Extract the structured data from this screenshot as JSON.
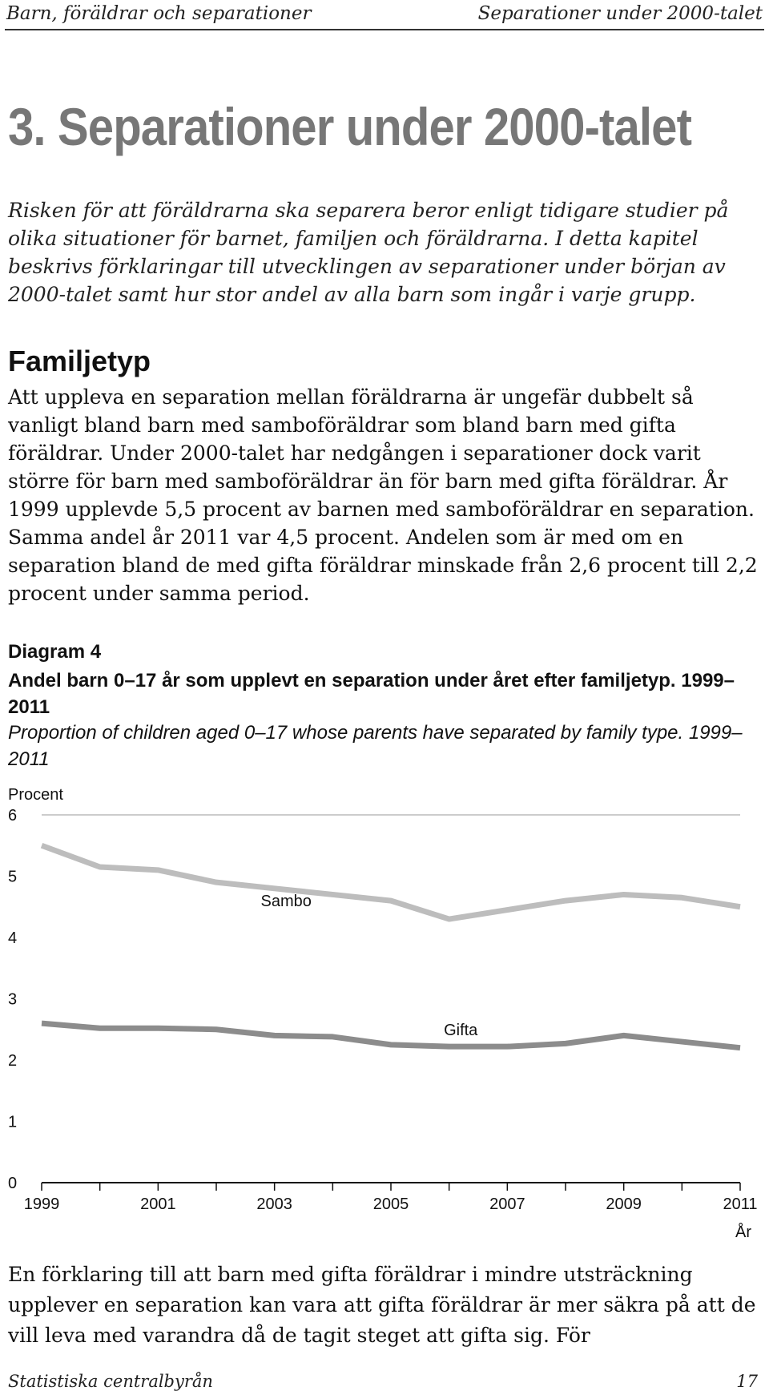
{
  "header": {
    "left": "Barn, föräldrar och separationer",
    "right": "Separationer under 2000-talet"
  },
  "chapter_title": "3. Separationer under 2000-talet",
  "intro": "Risken för att föräldrarna ska separera beror enligt tidigare studier på olika situationer för barnet, familjen och föräldrarna. I detta kapitel beskrivs förklaringar till utvecklingen av separationer under början av 2000-talet samt hur stor andel av alla barn som ingår i varje grupp.",
  "section_title": "Familjetyp",
  "body_paragraph": "Att uppleva en separation mellan föräldrarna är ungefär dubbelt så vanligt bland barn med samboföräldrar som bland barn med gifta föräldrar. Under 2000-talet har nedgången i separationer dock varit större för barn med samboföräldrar än för barn med gifta föräldrar. År 1999 upplevde 5,5 procent av barnen med samboföräldrar en separation. Samma andel år 2011 var 4,5 procent. Andelen som är med om en separation bland de med gifta föräldrar minskade från 2,6 procent till 2,2 procent under samma period.",
  "figure": {
    "label": "Diagram 4",
    "title_sv": "Andel barn 0–17 år som upplevt en separation under året efter familjetyp. 1999–2011",
    "title_en": "Proportion of children aged 0–17 whose parents have separated by family type. 1999–2011"
  },
  "chart_data": {
    "type": "line",
    "ylabel": "Procent",
    "xlabel": "År",
    "ylim": [
      0,
      6
    ],
    "yticks": [
      "0",
      "1",
      "2",
      "3",
      "4",
      "5",
      "6"
    ],
    "xtick_labels": [
      "1999",
      "2001",
      "2003",
      "2005",
      "2007",
      "2009",
      "2011"
    ],
    "x": [
      1999,
      2000,
      2001,
      2002,
      2003,
      2004,
      2005,
      2006,
      2007,
      2008,
      2009,
      2010,
      2011
    ],
    "grid": "y-axis top line only",
    "series": [
      {
        "name": "Sambo",
        "color": "#bdbdbd",
        "values": [
          5.5,
          5.15,
          5.1,
          4.9,
          4.8,
          4.7,
          4.6,
          4.3,
          4.45,
          4.6,
          4.7,
          4.65,
          4.5
        ]
      },
      {
        "name": "Gifta",
        "color": "#8c8c8c",
        "values": [
          2.6,
          2.52,
          2.52,
          2.5,
          2.4,
          2.38,
          2.25,
          2.22,
          2.22,
          2.27,
          2.4,
          2.3,
          2.2
        ]
      }
    ]
  },
  "body_paragraph_2": "En förklaring till att barn med gifta föräldrar i mindre utsträckning upplever en separation kan vara att gifta föräldrar är mer säkra på att de vill leva med varandra då de tagit steget att gifta sig. För",
  "footer": {
    "left": "Statistiska centralbyrån",
    "right": "17"
  }
}
